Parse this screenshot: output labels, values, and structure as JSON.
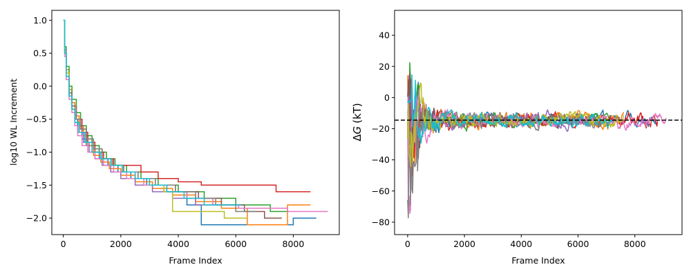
{
  "chart_data": [
    {
      "type": "line",
      "title": "",
      "xlabel": "Frame Index",
      "ylabel": "log10 WL Increment",
      "xlim": [
        -400,
        9600
      ],
      "ylim": [
        -2.25,
        1.15
      ],
      "xticks": [
        0,
        2000,
        4000,
        6000,
        8000
      ],
      "xtick_labels": [
        "0",
        "2000",
        "4000",
        "6000",
        "8000"
      ],
      "yticks": [
        -2.0,
        -1.5,
        -1.0,
        -0.5,
        0.0,
        0.5,
        1.0
      ],
      "ytick_labels": [
        "−2.0",
        "−1.5",
        "−1.0",
        "−0.5",
        "0.0",
        "0.5",
        "1.0"
      ],
      "grid": false,
      "legend": "none",
      "series": [
        {
          "color": "#1f77b4",
          "x": [
            0,
            50,
            100,
            200,
            300,
            400,
            500,
            650,
            800,
            1000,
            1250,
            1550,
            1900,
            2350,
            2900,
            3600,
            4300,
            4800,
            7100,
            8000,
            8800
          ],
          "y": [
            1.0,
            0.5,
            0.2,
            -0.1,
            -0.3,
            -0.5,
            -0.7,
            -0.8,
            -0.9,
            -1.0,
            -1.1,
            -1.2,
            -1.3,
            -1.4,
            -1.5,
            -1.6,
            -1.8,
            -2.1,
            -2.1,
            -2.0,
            -2.0
          ]
        },
        {
          "color": "#ff7f0e",
          "x": [
            0,
            50,
            100,
            200,
            300,
            400,
            550,
            700,
            850,
            1050,
            1300,
            1600,
            2000,
            2500,
            3100,
            3800,
            4600,
            5500,
            6400,
            7800,
            8600
          ],
          "y": [
            1.0,
            0.55,
            0.25,
            -0.05,
            -0.25,
            -0.45,
            -0.6,
            -0.75,
            -0.9,
            -1.05,
            -1.15,
            -1.25,
            -1.35,
            -1.45,
            -1.55,
            -1.65,
            -1.75,
            -1.85,
            -2.1,
            -1.8,
            -1.8
          ]
        },
        {
          "color": "#2ca02c",
          "x": [
            0,
            50,
            100,
            200,
            300,
            450,
            600,
            800,
            1000,
            1250,
            1500,
            1800,
            2200,
            2700,
            3300,
            4000,
            4900,
            6000,
            7200,
            7800
          ],
          "y": [
            1.0,
            0.6,
            0.3,
            0.0,
            -0.2,
            -0.4,
            -0.6,
            -0.75,
            -0.9,
            -1.0,
            -1.1,
            -1.2,
            -1.3,
            -1.4,
            -1.5,
            -1.6,
            -1.7,
            -1.8,
            -1.9,
            -1.9
          ]
        },
        {
          "color": "#d62728",
          "x": [
            0,
            50,
            100,
            200,
            300,
            450,
            650,
            850,
            1100,
            1400,
            1750,
            2200,
            2700,
            3300,
            4000,
            4800,
            5800,
            6600,
            7400,
            8600
          ],
          "y": [
            1.0,
            0.5,
            0.2,
            -0.1,
            -0.3,
            -0.5,
            -0.7,
            -0.85,
            -1.0,
            -1.1,
            -1.2,
            -1.2,
            -1.3,
            -1.4,
            -1.45,
            -1.5,
            -1.5,
            -1.5,
            -1.6,
            -1.6
          ]
        },
        {
          "color": "#9467bd",
          "x": [
            0,
            50,
            100,
            200,
            300,
            400,
            550,
            700,
            900,
            1100,
            1350,
            1650,
            2000,
            2500,
            3100,
            3800,
            4600,
            5400,
            6200
          ],
          "y": [
            1.0,
            0.5,
            0.15,
            -0.15,
            -0.35,
            -0.55,
            -0.7,
            -0.85,
            -1.0,
            -1.1,
            -1.2,
            -1.3,
            -1.4,
            -1.5,
            -1.6,
            -1.7,
            -1.8,
            -1.8,
            -1.8
          ]
        },
        {
          "color": "#8c564b",
          "x": [
            0,
            50,
            100,
            200,
            300,
            450,
            600,
            800,
            1050,
            1350,
            1700,
            2100,
            2600,
            3200,
            3900,
            4700,
            5500,
            6300,
            7000,
            7600
          ],
          "y": [
            1.0,
            0.5,
            0.2,
            -0.1,
            -0.3,
            -0.5,
            -0.65,
            -0.8,
            -0.95,
            -1.1,
            -1.2,
            -1.3,
            -1.4,
            -1.5,
            -1.6,
            -1.7,
            -1.8,
            -1.9,
            -2.0,
            -2.0
          ]
        },
        {
          "color": "#e377c2",
          "x": [
            0,
            50,
            100,
            200,
            300,
            400,
            500,
            650,
            850,
            1100,
            1400,
            1750,
            2200,
            2800,
            3500,
            4300,
            5200,
            6100,
            7000,
            7800,
            8500,
            9200
          ],
          "y": [
            1.0,
            0.45,
            0.1,
            -0.2,
            -0.4,
            -0.6,
            -0.75,
            -0.9,
            -1.0,
            -1.1,
            -1.2,
            -1.3,
            -1.4,
            -1.5,
            -1.6,
            -1.7,
            -1.8,
            -1.85,
            -1.85,
            -1.9,
            -1.9,
            -1.9
          ]
        },
        {
          "color": "#7f7f7f",
          "x": [
            0,
            50,
            100,
            200,
            300,
            450,
            600,
            800,
            1050,
            1350,
            1700,
            2100,
            2600,
            3200,
            3900,
            4600,
            5300,
            6000,
            6700
          ],
          "y": [
            1.0,
            0.55,
            0.2,
            -0.1,
            -0.3,
            -0.5,
            -0.65,
            -0.8,
            -0.95,
            -1.1,
            -1.2,
            -1.3,
            -1.4,
            -1.5,
            -1.6,
            -1.7,
            -1.8,
            -1.9,
            -1.9
          ]
        },
        {
          "color": "#bcbd22",
          "x": [
            0,
            50,
            100,
            200,
            300,
            400,
            550,
            750,
            1000,
            1300,
            1650,
            2050,
            2500,
            3000,
            3500,
            3800,
            5600,
            6400
          ],
          "y": [
            1.0,
            0.5,
            0.2,
            -0.15,
            -0.35,
            -0.55,
            -0.7,
            -0.85,
            -1.0,
            -1.1,
            -1.2,
            -1.3,
            -1.4,
            -1.5,
            -1.6,
            -1.9,
            -2.0,
            -2.0
          ]
        },
        {
          "color": "#17becf",
          "x": [
            0,
            50,
            100,
            200,
            300,
            400,
            550,
            750,
            1000,
            1300,
            1650,
            2050,
            2500,
            3000,
            3600,
            4200,
            4900,
            5400,
            6200
          ],
          "y": [
            1.0,
            0.5,
            0.15,
            -0.15,
            -0.35,
            -0.55,
            -0.7,
            -0.85,
            -1.0,
            -1.1,
            -1.2,
            -1.3,
            -1.4,
            -1.5,
            -1.6,
            -1.7,
            -1.8,
            -1.8,
            -1.8
          ]
        }
      ]
    },
    {
      "type": "line",
      "title": "",
      "xlabel": "Frame Index",
      "ylabel": "ΔG (kT)",
      "ylabel_symbol": "Δ",
      "ylabel_italic": "G",
      "ylabel_unit": "(kT)",
      "xlim": [
        -460,
        9660
      ],
      "ylim": [
        -88,
        56
      ],
      "xticks": [
        0,
        2000,
        4000,
        6000,
        8000
      ],
      "xtick_labels": [
        "0",
        "2000",
        "4000",
        "6000",
        "8000"
      ],
      "yticks": [
        -80,
        -60,
        -40,
        -20,
        0,
        20,
        40
      ],
      "ytick_labels": [
        "−80",
        "−60",
        "−40",
        "−20",
        "0",
        "20",
        "40"
      ],
      "grid": false,
      "legend": "none",
      "reference_line": {
        "y": -14.5,
        "style": "dashed",
        "color": "#000000"
      },
      "series": [
        {
          "color": "#1f77b4",
          "end": 8800,
          "amp0": 45,
          "noise": 6
        },
        {
          "color": "#ff7f0e",
          "end": 7600,
          "amp0": 40,
          "noise": 6
        },
        {
          "color": "#2ca02c",
          "end": 7200,
          "amp0": 42,
          "noise": 6
        },
        {
          "color": "#d62728",
          "end": 8800,
          "amp0": 48,
          "noise": 6
        },
        {
          "color": "#9467bd",
          "end": 6200,
          "amp0": 40,
          "noise": 6
        },
        {
          "color": "#8c564b",
          "end": 7000,
          "amp0": 44,
          "noise": 6
        },
        {
          "color": "#e377c2",
          "end": 9100,
          "amp0": 50,
          "noise": 6
        },
        {
          "color": "#7f7f7f",
          "end": 6800,
          "amp0": 60,
          "noise": 6
        },
        {
          "color": "#bcbd22",
          "end": 7600,
          "amp0": 42,
          "noise": 6
        },
        {
          "color": "#17becf",
          "end": 7200,
          "amp0": 38,
          "noise": 6
        }
      ]
    }
  ]
}
